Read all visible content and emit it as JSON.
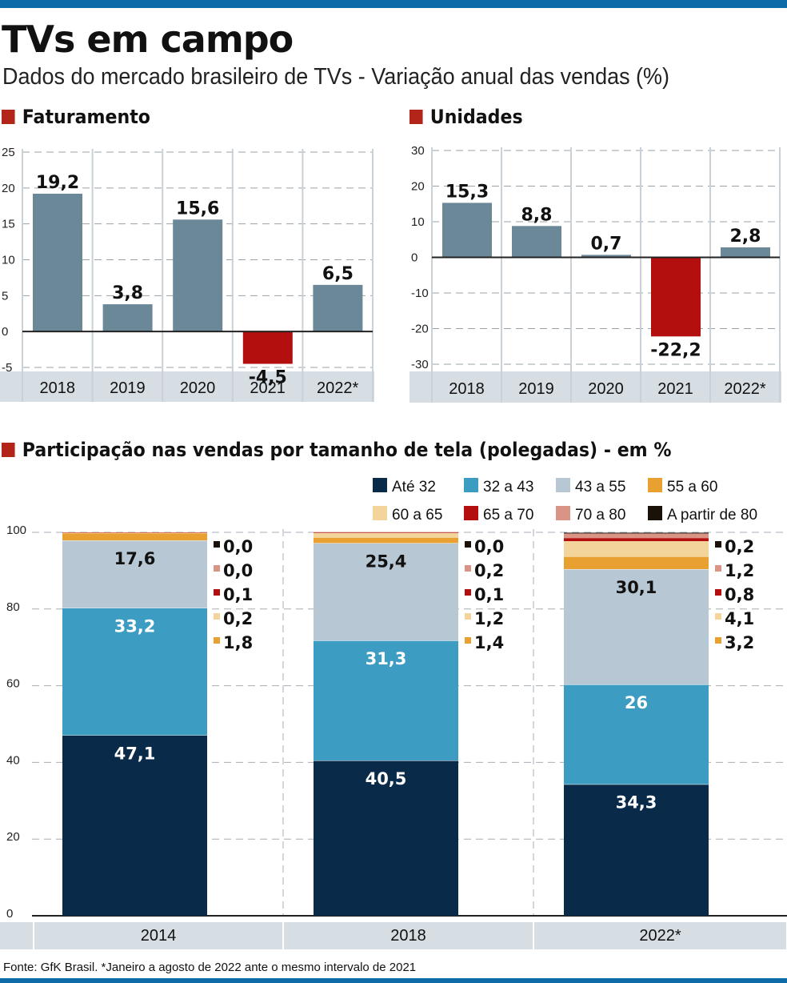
{
  "title": "TVs em campo",
  "subtitle": "Dados do mercado brasileiro de TVs - Variação anual das vendas (%)",
  "source": "Fonte: GfK Brasil. *Janeiro a agosto de 2022 ante o mesmo intervalo de 2021",
  "colors": {
    "accent_bar": "#0f6aa8",
    "section_marker": "#b32519",
    "positive_bar": "#6b8898",
    "negative_bar": "#b30f0f",
    "axis_band": "#d6dde3"
  },
  "chart_data": [
    {
      "type": "bar",
      "title": "Faturamento",
      "categories": [
        "2018",
        "2019",
        "2020",
        "2021",
        "2022*"
      ],
      "values": [
        19.2,
        3.8,
        15.6,
        -4.5,
        6.5
      ],
      "value_labels": [
        "19,2",
        "3,8",
        "15,6",
        "-4,5",
        "6,5"
      ],
      "ylim": [
        -5,
        25
      ],
      "yticks": [
        -5,
        0,
        5,
        10,
        15,
        20,
        25
      ],
      "ytick_labels": [
        "-5",
        "0",
        "5",
        "10",
        "15",
        "20",
        "25"
      ],
      "grid": true
    },
    {
      "type": "bar",
      "title": "Unidades",
      "categories": [
        "2018",
        "2019",
        "2020",
        "2021",
        "2022*"
      ],
      "values": [
        15.3,
        8.8,
        0.7,
        -22.2,
        2.8
      ],
      "value_labels": [
        "15,3",
        "8,8",
        "0,7",
        "-22,2",
        "2,8"
      ],
      "ylim": [
        -30,
        30
      ],
      "yticks": [
        -30,
        -20,
        -10,
        0,
        10,
        20,
        30
      ],
      "ytick_labels": [
        "-30",
        "-20",
        "-10",
        "0",
        "10",
        "20",
        "30"
      ],
      "grid": true
    },
    {
      "type": "bar",
      "stacked": true,
      "title": "Participação nas vendas por tamanho de tela (polegadas) - em %",
      "categories": [
        "2014",
        "2018",
        "2022*"
      ],
      "ylim": [
        0,
        100
      ],
      "yticks": [
        0,
        20,
        40,
        60,
        80,
        100
      ],
      "ytick_labels": [
        "0",
        "20",
        "40",
        "60",
        "80",
        "100"
      ],
      "grid": true,
      "legend_position": "top-right",
      "series": [
        {
          "name": "Até 32",
          "color": "#0a2a4a",
          "text_color": "#ffffff",
          "values": [
            47.1,
            40.5,
            34.3
          ],
          "labels": [
            "47,1",
            "40,5",
            "34,3"
          ]
        },
        {
          "name": "32 a 43",
          "color": "#3d9cc2",
          "text_color": "#ffffff",
          "values": [
            33.2,
            31.3,
            26.0
          ],
          "labels": [
            "33,2",
            "31,3",
            "26"
          ]
        },
        {
          "name": "43 a 55",
          "color": "#b7c7d3",
          "text_color": "#111111",
          "values": [
            17.6,
            25.4,
            30.1
          ],
          "labels": [
            "17,6",
            "25,4",
            "30,1"
          ]
        },
        {
          "name": "55 a 60",
          "color": "#e8a030",
          "text_color": "#111111",
          "values": [
            1.8,
            1.4,
            3.2
          ],
          "labels": [
            "1,8",
            "1,4",
            "3,2"
          ]
        },
        {
          "name": "60 a 65",
          "color": "#f3d59c",
          "text_color": "#111111",
          "values": [
            0.2,
            1.2,
            4.1
          ],
          "labels": [
            "0,2",
            "1,2",
            "4,1"
          ]
        },
        {
          "name": "65 a 70",
          "color": "#b30f0f",
          "text_color": "#111111",
          "values": [
            0.1,
            0.1,
            0.8
          ],
          "labels": [
            "0,1",
            "0,1",
            "0,8"
          ]
        },
        {
          "name": "70 a 80",
          "color": "#d99486",
          "text_color": "#111111",
          "values": [
            0.0,
            0.2,
            1.2
          ],
          "labels": [
            "0,0",
            "0,2",
            "1,2"
          ]
        },
        {
          "name": "A partir de 80",
          "color": "#1a1208",
          "text_color": "#111111",
          "values": [
            0.0,
            0.0,
            0.2
          ],
          "labels": [
            "0,0",
            "0,0",
            "0,2"
          ]
        }
      ]
    }
  ]
}
